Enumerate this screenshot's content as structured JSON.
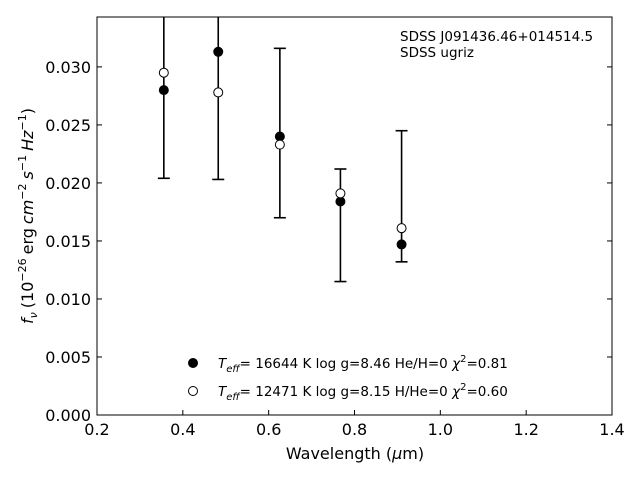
{
  "chart_data": {
    "type": "scatter",
    "xlabel_main": "Wavelength (",
    "xlabel_mu": "μ",
    "xlabel_unit": "m)",
    "ylabel_f": "f",
    "ylabel_nu": "ν",
    "ylabel_mid": "(10",
    "ylabel_exp1": "−26",
    "ylabel_erg": "erg",
    "ylabel_cm": "cm",
    "ylabel_exp2": "−2",
    "ylabel_s": "s",
    "ylabel_exp3": "−1",
    "ylabel_hz": "Hz",
    "ylabel_exp4": "−1",
    "ylabel_close": ")",
    "xlim": [
      0.2,
      1.4
    ],
    "ylim": [
      0.0,
      0.0343
    ],
    "x_ticks": [
      0.2,
      0.4,
      0.6,
      0.8,
      1.0,
      1.2,
      1.4
    ],
    "x_tick_labels": [
      "0.2",
      "0.4",
      "0.6",
      "0.8",
      "1.0",
      "1.2",
      "1.4"
    ],
    "y_ticks": [
      0.0,
      0.005,
      0.01,
      0.015,
      0.02,
      0.025,
      0.03
    ],
    "y_tick_labels": [
      "0.000",
      "0.005",
      "0.010",
      "0.015",
      "0.020",
      "0.025",
      "0.030"
    ],
    "annotation_lines": [
      "SDSS J091436.46+014514.5",
      "SDSS ugriz"
    ],
    "errorbars": [
      {
        "x": 0.3557,
        "low": 0.0204,
        "high": 0.0343
      },
      {
        "x": 0.4825,
        "low": 0.0203,
        "high": 0.0343
      },
      {
        "x": 0.6261,
        "low": 0.017,
        "high": 0.0316
      },
      {
        "x": 0.7672,
        "low": 0.0115,
        "high": 0.0212
      },
      {
        "x": 0.9097,
        "low": 0.0132,
        "high": 0.0245
      }
    ],
    "series": [
      {
        "marker": "filled",
        "color": "#000000",
        "x": [
          0.3557,
          0.4825,
          0.6261,
          0.7672,
          0.9097
        ],
        "y": [
          0.028,
          0.0313,
          0.024,
          0.0184,
          0.0147
        ],
        "legend": {
          "teff": "T",
          "teff_sub": "eff",
          "text": "= 16644 K  log g=8.46  He/H=0  ",
          "chi": "χ",
          "chi_sup": "2",
          "chi_val": "=0.81"
        }
      },
      {
        "marker": "open",
        "color": "#000000",
        "x": [
          0.3557,
          0.4825,
          0.6261,
          0.7672,
          0.9097
        ],
        "y": [
          0.0295,
          0.0278,
          0.0233,
          0.0191,
          0.0161
        ],
        "legend": {
          "teff": "T",
          "teff_sub": "eff",
          "text": "= 12471 K  log g=8.15  H/He=0  ",
          "chi": "χ",
          "chi_sup": "2",
          "chi_val": "=0.60"
        }
      }
    ],
    "grid": false,
    "legend_placement": "lower-center"
  }
}
